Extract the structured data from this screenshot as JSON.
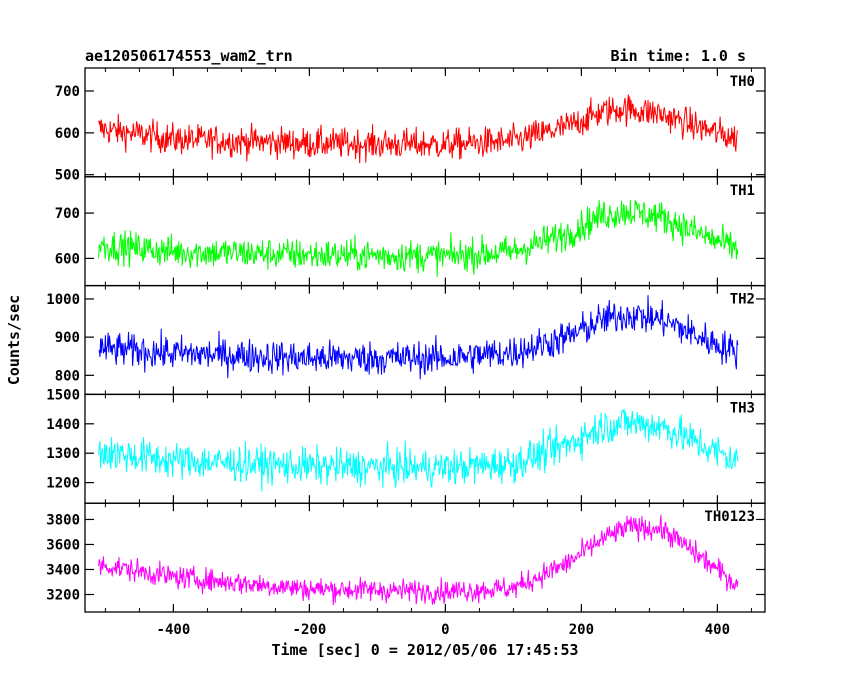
{
  "chart_data": {
    "type": "line",
    "title_left": "ae120506174553_wam2_trn",
    "title_right": "Bin time: 1.0 s",
    "xlabel": "Time [sec] 0 = 2012/05/06 17:45:53",
    "ylabel": "Counts/sec",
    "xlim": [
      -530,
      470
    ],
    "x_ticks": [
      -400,
      -200,
      0,
      200,
      400
    ],
    "x_range": [
      -510,
      430
    ],
    "x_step": 1.0,
    "grid": false,
    "panels": [
      {
        "name": "TH0",
        "color": "#ff0000",
        "ylim": [
          495,
          755
        ],
        "y_ticks": [
          500,
          600,
          700
        ],
        "baseline": [
          [
            -510,
            610
          ],
          [
            -400,
            585
          ],
          [
            -200,
            575
          ],
          [
            0,
            572
          ],
          [
            100,
            580
          ],
          [
            180,
            615
          ],
          [
            230,
            650
          ],
          [
            260,
            658
          ],
          [
            310,
            648
          ],
          [
            370,
            615
          ],
          [
            430,
            585
          ]
        ],
        "noise_amp": 48
      },
      {
        "name": "TH1",
        "color": "#00ff00",
        "ylim": [
          540,
          780
        ],
        "y_ticks": [
          600,
          700
        ],
        "baseline": [
          [
            -510,
            630
          ],
          [
            -400,
            615
          ],
          [
            -200,
            608
          ],
          [
            0,
            605
          ],
          [
            100,
            615
          ],
          [
            180,
            655
          ],
          [
            230,
            695
          ],
          [
            270,
            705
          ],
          [
            320,
            690
          ],
          [
            380,
            650
          ],
          [
            430,
            620
          ]
        ],
        "noise_amp": 46
      },
      {
        "name": "TH2",
        "color": "#0000ff",
        "ylim": [
          750,
          1035
        ],
        "y_ticks": [
          800,
          900,
          1000
        ],
        "baseline": [
          [
            -510,
            870
          ],
          [
            -400,
            858
          ],
          [
            -200,
            845
          ],
          [
            0,
            845
          ],
          [
            100,
            860
          ],
          [
            180,
            900
          ],
          [
            230,
            945
          ],
          [
            270,
            960
          ],
          [
            320,
            945
          ],
          [
            380,
            895
          ],
          [
            430,
            860
          ]
        ],
        "noise_amp": 58
      },
      {
        "name": "TH3",
        "color": "#00ffff",
        "ylim": [
          1130,
          1500
        ],
        "y_ticks": [
          1200,
          1300,
          1400,
          1500
        ],
        "baseline": [
          [
            -510,
            1305
          ],
          [
            -400,
            1275
          ],
          [
            -200,
            1255
          ],
          [
            0,
            1250
          ],
          [
            100,
            1265
          ],
          [
            180,
            1330
          ],
          [
            230,
            1390
          ],
          [
            270,
            1405
          ],
          [
            320,
            1390
          ],
          [
            380,
            1325
          ],
          [
            430,
            1270
          ]
        ],
        "noise_amp": 80
      },
      {
        "name": "TH0123",
        "color": "#ff00ff",
        "ylim": [
          3060,
          3930
        ],
        "y_ticks": [
          3200,
          3400,
          3600,
          3800
        ],
        "baseline": [
          [
            -510,
            3440
          ],
          [
            -400,
            3340
          ],
          [
            -300,
            3290
          ],
          [
            -200,
            3245
          ],
          [
            0,
            3225
          ],
          [
            100,
            3250
          ],
          [
            180,
            3450
          ],
          [
            230,
            3640
          ],
          [
            270,
            3745
          ],
          [
            320,
            3720
          ],
          [
            380,
            3480
          ],
          [
            430,
            3275
          ]
        ],
        "noise_amp": 120
      }
    ]
  }
}
